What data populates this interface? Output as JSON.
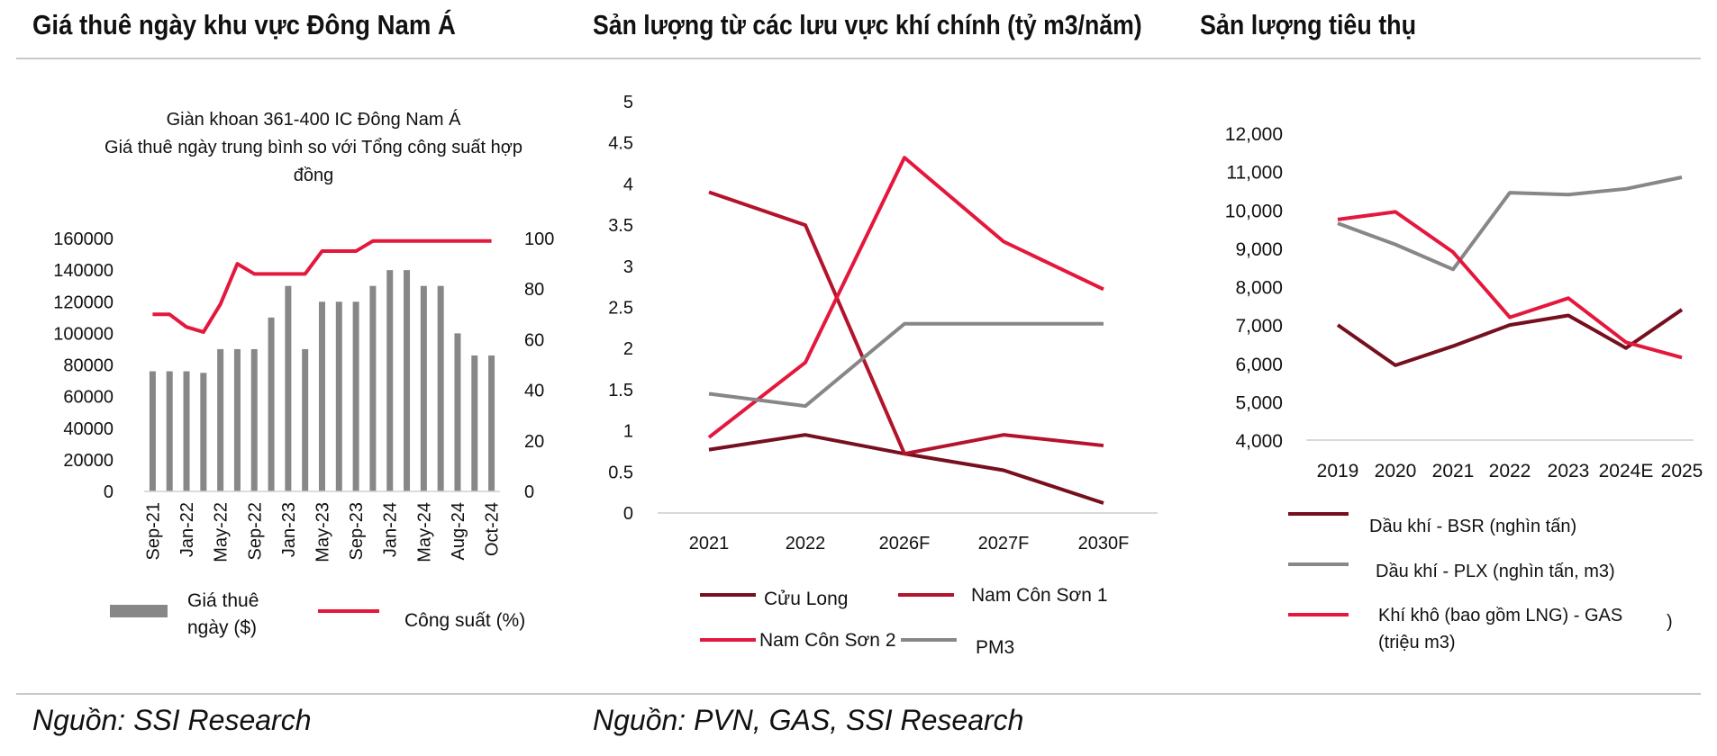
{
  "panels": [
    {
      "title": "Giá thuê ngày khu vực Đông Nam Á"
    },
    {
      "title": "Sản lượng từ các lưu vực khí chính (tỷ m3/năm)"
    },
    {
      "title": "Sản lượng tiêu thụ"
    }
  ],
  "sources": {
    "left": "Nguồn: SSI Research",
    "middle": "Nguồn: PVN, GAS, SSI Research"
  },
  "colors": {
    "grey": "#878787",
    "red": "#e4173c",
    "darkred": "#760f1e",
    "crimson": "#b4132c",
    "rule": "#c8c8c8"
  },
  "chart_data": [
    {
      "type": "bar",
      "title": [
        "Giàn khoan 361-400  IC Đông Nam Á",
        "Giá thuê ngày trung bình so với Tổng  công suất hợp",
        "đồng"
      ],
      "categories_shown": [
        "Sep-21",
        "Jan-22",
        "May-22",
        "Sep-22",
        "Jan-23",
        "May-23",
        "Sep-23",
        "Jan-24",
        "May-24",
        "Aug-24",
        "Oct-24"
      ],
      "bar_series": {
        "name_lines": [
          "Giá thuê",
          "ngày ($)"
        ],
        "values": [
          76000,
          76000,
          76000,
          75000,
          90000,
          90000,
          90000,
          110000,
          130000,
          90000,
          120000,
          120000,
          120000,
          130000,
          140000,
          140000,
          130000,
          130000,
          100000,
          86000,
          86000
        ]
      },
      "line_series": {
        "name": "Công suất (%)",
        "values": [
          70,
          70,
          65,
          63,
          74,
          90,
          86,
          86,
          86,
          86,
          95,
          95,
          95,
          99,
          99,
          99,
          99,
          99,
          99,
          99,
          99
        ]
      },
      "y_left": {
        "min": 0,
        "max": 160000,
        "ticks": [
          "160000",
          "140000",
          "120000",
          "100000",
          "80000",
          "60000",
          "40000",
          "20000",
          "0"
        ]
      },
      "y_right": {
        "min": 0,
        "max": 100,
        "ticks": [
          "100",
          "80",
          "60",
          "40",
          "20",
          "0"
        ]
      }
    },
    {
      "type": "line",
      "categories": [
        "2021",
        "2022",
        "2026F",
        "2027F",
        "2030F"
      ],
      "y_ticks": [
        "5",
        "4.5",
        "4",
        "3.5",
        "3",
        "2.5",
        "2",
        "1.5",
        "1",
        "0.5",
        "0"
      ],
      "ylim": [
        0,
        5
      ],
      "series": [
        {
          "name": "Cửu Long",
          "color": "#760f1e",
          "values": [
            0.77,
            0.95,
            0.72,
            0.52,
            0.12
          ]
        },
        {
          "name": "Nam Côn Sơn 1",
          "color": "#b4132c",
          "values": [
            3.9,
            3.5,
            0.72,
            0.95,
            0.82
          ]
        },
        {
          "name": "Nam Côn Sơn 2",
          "color": "#e4173c",
          "values": [
            0.92,
            1.83,
            4.32,
            3.3,
            2.72
          ]
        },
        {
          "name": "PM3",
          "color": "#878787",
          "values": [
            1.45,
            1.3,
            2.3,
            2.3,
            2.3
          ]
        }
      ]
    },
    {
      "type": "line",
      "categories": [
        "2019",
        "2020",
        "2021",
        "2022",
        "2023",
        "2024E",
        "2025"
      ],
      "y_ticks": [
        "12,000",
        "11,000",
        "10,000",
        "9,000",
        "8,000",
        "7,000",
        "6,000",
        "5,000",
        "4,000"
      ],
      "ylim": [
        4000,
        12000
      ],
      "series": [
        {
          "name": "Dầu khí - BSR (nghìn tấn)",
          "color": "#760f1e",
          "values": [
            7000,
            5950,
            6450,
            7000,
            7250,
            6400,
            7400
          ]
        },
        {
          "name": "Dầu khí - PLX (nghìn tấn, m3)",
          "color": "#878787",
          "values": [
            9650,
            9100,
            8450,
            10450,
            10400,
            10550,
            10850
          ]
        },
        {
          "name_lines": [
            "Khí khô (bao gồm LNG) - GAS",
            "(triệu m3)"
          ],
          "color": "#e4173c",
          "values": [
            9750,
            9950,
            8900,
            7200,
            7700,
            6550,
            6150
          ]
        }
      ],
      "legend_trailing_mark": ")"
    }
  ]
}
